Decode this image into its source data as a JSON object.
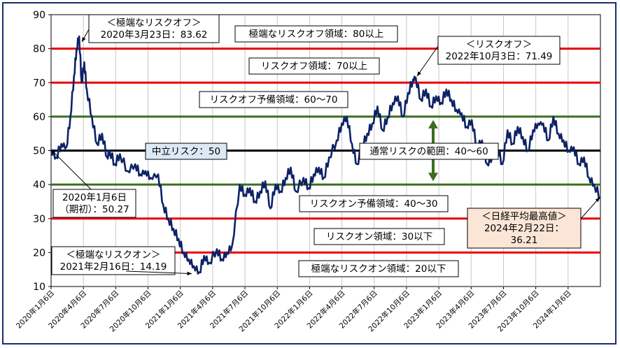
{
  "chart_data": {
    "type": "line",
    "title": "",
    "xlabel": "",
    "ylabel": "",
    "ylim": [
      10,
      90
    ],
    "yticks": [
      10,
      20,
      30,
      40,
      50,
      60,
      70,
      80,
      90
    ],
    "xticks": [
      "2020年1月6日",
      "2020年4月6日",
      "2020年7月6日",
      "2020年10月6日",
      "2021年1月6日",
      "2021年4月6日",
      "2021年7月6日",
      "2021年10月6日",
      "2022年1月6日",
      "2022年4月6日",
      "2022年7月6日",
      "2022年10月6日",
      "2023年1月6日",
      "2023年4月6日",
      "2023年7月6日",
      "2023年10月6日",
      "2024年1月6日"
    ],
    "grid": "vertical",
    "line_color": "#0d2266",
    "threshold_lines": [
      {
        "value": 80,
        "color": "#e8000b"
      },
      {
        "value": 70,
        "color": "#e8000b"
      },
      {
        "value": 60,
        "color": "#3c6e1f"
      },
      {
        "value": 50,
        "color": "#000000"
      },
      {
        "value": 40,
        "color": "#3c6e1f"
      },
      {
        "value": 30,
        "color": "#e8000b"
      },
      {
        "value": 20,
        "color": "#e8000b"
      }
    ],
    "series": [
      {
        "x": [
          "2020-01-06",
          "2020-01-20",
          "2020-02-03",
          "2020-02-17",
          "2020-02-28",
          "2020-03-09",
          "2020-03-16",
          "2020-03-23",
          "2020-03-30",
          "2020-04-06",
          "2020-04-13",
          "2020-04-27",
          "2020-05-11",
          "2020-05-25",
          "2020-06-08",
          "2020-06-15",
          "2020-06-29",
          "2020-07-13",
          "2020-08-03",
          "2020-08-24",
          "2020-09-07",
          "2020-09-21",
          "2020-10-05",
          "2020-10-26",
          "2020-11-09",
          "2020-11-23",
          "2020-12-07",
          "2020-12-21",
          "2021-01-04",
          "2021-01-18",
          "2021-02-01",
          "2021-02-16",
          "2021-03-01",
          "2021-03-15",
          "2021-04-05",
          "2021-04-19",
          "2021-05-03",
          "2021-05-17",
          "2021-06-07",
          "2021-06-21",
          "2021-07-05",
          "2021-07-19",
          "2021-08-02",
          "2021-08-16",
          "2021-08-30",
          "2021-09-13",
          "2021-09-27",
          "2021-10-11",
          "2021-10-25",
          "2021-11-08",
          "2021-11-29",
          "2021-12-13",
          "2021-12-27",
          "2022-01-10",
          "2022-01-24",
          "2022-02-07",
          "2022-02-28",
          "2022-03-14",
          "2022-03-28",
          "2022-04-11",
          "2022-04-25",
          "2022-05-09",
          "2022-05-23",
          "2022-06-06",
          "2022-06-20",
          "2022-07-04",
          "2022-07-18",
          "2022-08-01",
          "2022-08-15",
          "2022-08-29",
          "2022-09-12",
          "2022-09-26",
          "2022-10-03",
          "2022-10-17",
          "2022-10-31",
          "2022-11-14",
          "2022-11-28",
          "2022-12-12",
          "2022-12-26",
          "2023-01-09",
          "2023-01-23",
          "2023-02-06",
          "2023-02-20",
          "2023-03-06",
          "2023-03-20",
          "2023-04-03",
          "2023-04-17",
          "2023-05-01",
          "2023-05-15",
          "2023-05-29",
          "2023-06-12",
          "2023-06-26",
          "2023-07-10",
          "2023-07-24",
          "2023-08-07",
          "2023-08-21",
          "2023-09-04",
          "2023-09-18",
          "2023-10-02",
          "2023-10-16",
          "2023-10-30",
          "2023-11-13",
          "2023-11-27",
          "2023-12-11",
          "2023-12-25",
          "2024-01-08",
          "2024-01-22",
          "2024-02-05",
          "2024-02-22"
        ],
        "values": [
          50.27,
          48,
          52,
          51,
          60,
          72,
          80,
          83.62,
          70,
          76,
          68,
          60,
          52,
          55,
          48,
          50,
          46,
          49,
          44,
          46,
          43,
          44,
          42,
          43,
          34,
          30,
          27,
          24,
          20,
          18,
          16,
          14.19,
          19,
          17,
          21,
          18,
          20,
          22,
          40,
          37,
          39,
          35,
          38,
          41,
          33,
          40,
          38,
          42,
          45,
          38,
          42,
          39,
          43,
          45,
          42,
          48,
          53,
          58,
          60,
          52,
          46,
          51,
          55,
          58,
          63,
          56,
          60,
          64,
          66,
          60,
          67,
          71,
          71.49,
          65,
          68,
          63,
          66,
          64,
          68,
          65,
          62,
          61,
          57,
          59,
          51,
          53,
          46,
          48,
          51,
          46,
          56,
          52,
          57,
          54,
          50,
          56,
          58,
          58,
          53,
          60,
          55,
          53,
          50,
          51,
          46,
          48,
          42,
          40,
          36.21
        ]
      }
    ],
    "annotations": [
      {
        "id": "extreme_riskoff_peak",
        "lines": [
          "＜極端なリスクオフ＞",
          "2020年3月23日：83.62"
        ]
      },
      {
        "id": "extreme_riskoff_zone",
        "lines": [
          "極端なリスクオフ領域：80以上"
        ]
      },
      {
        "id": "riskoff_zone",
        "lines": [
          "リスクオフ領域：70以上"
        ]
      },
      {
        "id": "riskoff_prep_zone",
        "lines": [
          "リスクオフ予備領域：60～70"
        ]
      },
      {
        "id": "neutral",
        "lines": [
          "中立リスク：50"
        ]
      },
      {
        "id": "normal_range",
        "lines": [
          "通常リスクの範囲：40～60"
        ]
      },
      {
        "id": "start",
        "lines": [
          "2020年1月6日",
          "（期初）：50.27"
        ]
      },
      {
        "id": "riskon_prep_zone",
        "lines": [
          "リスクオン予備領域：40～30"
        ]
      },
      {
        "id": "riskon_zone",
        "lines": [
          "リスクオン領域：30以下"
        ]
      },
      {
        "id": "extreme_riskon_low",
        "lines": [
          "＜極端なリスクオン＞",
          "2021年2月16日：14.19"
        ]
      },
      {
        "id": "extreme_riskon_zone",
        "lines": [
          "極端なリスクオン領域：20以下"
        ]
      },
      {
        "id": "riskoff_peak",
        "lines": [
          "＜リスクオフ＞",
          "2022年10月3日：71.49"
        ]
      },
      {
        "id": "nikkei_high",
        "lines": [
          "＜日経平均最高値＞",
          "2024年2月22日：",
          "36.21"
        ]
      }
    ]
  }
}
